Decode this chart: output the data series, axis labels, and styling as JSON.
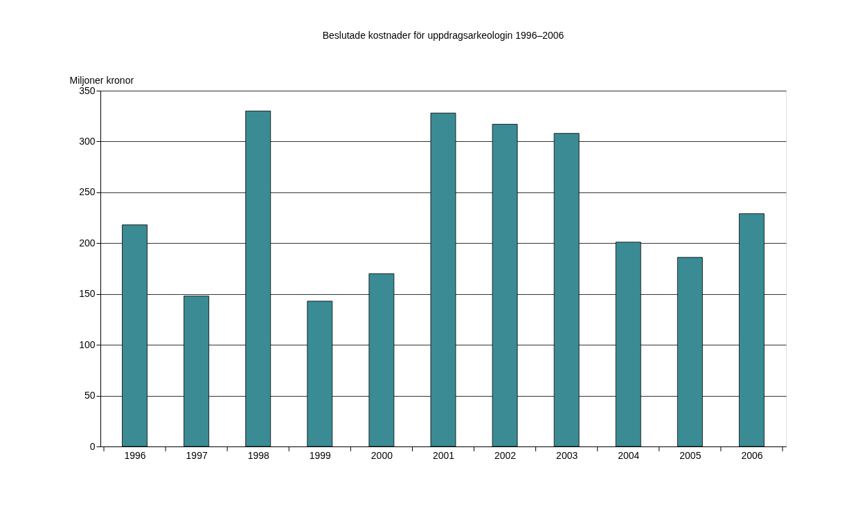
{
  "chart_data": {
    "type": "bar",
    "title": "Beslutade kostnader för uppdragsarkeologin 1996–2006",
    "ylabel": "Miljoner kronor",
    "categories": [
      "1996",
      "1997",
      "1998",
      "1999",
      "2000",
      "2001",
      "2002",
      "2003",
      "2004",
      "2005",
      "2006"
    ],
    "values": [
      218,
      148,
      330,
      143,
      170,
      328,
      317,
      308,
      201,
      186,
      229
    ],
    "color": "#3a8b94",
    "ylim": [
      0,
      350
    ],
    "yticks": [
      0,
      50,
      100,
      150,
      200,
      250,
      300,
      350
    ],
    "grid": "y"
  }
}
